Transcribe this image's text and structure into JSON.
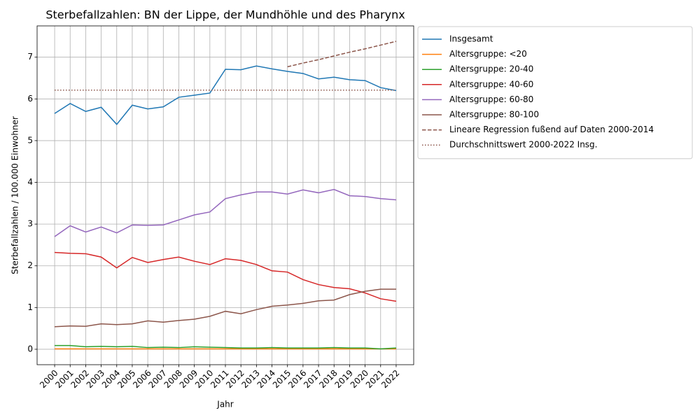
{
  "chart_data": {
    "type": "line",
    "title": "Sterbefallzahlen: BN der Lippe, der Mundhöhle und des Pharynx",
    "x_label": "Jahr",
    "y_label": "Sterbefallzahlen / 100.000 Einwohner",
    "x": [
      2000,
      2001,
      2002,
      2003,
      2004,
      2005,
      2006,
      2007,
      2008,
      2009,
      2010,
      2011,
      2012,
      2013,
      2014,
      2015,
      2016,
      2017,
      2018,
      2019,
      2020,
      2021,
      2022
    ],
    "xlim": [
      1998.87,
      2023.13
    ],
    "xticks": [
      2000,
      2001,
      2002,
      2003,
      2004,
      2005,
      2006,
      2007,
      2008,
      2009,
      2010,
      2011,
      2012,
      2013,
      2014,
      2015,
      2016,
      2017,
      2018,
      2019,
      2020,
      2021,
      2022
    ],
    "ylim": [
      -0.37,
      7.75
    ],
    "yticks": [
      0,
      1,
      2,
      3,
      4,
      5,
      6,
      7
    ],
    "grid": true,
    "legend": "outside-upper-right",
    "series": [
      {
        "name": "Insgesamt",
        "color": "#1f77b4",
        "dash": "solid",
        "values": [
          5.65,
          5.89,
          5.7,
          5.8,
          5.39,
          5.85,
          5.76,
          5.81,
          6.04,
          6.09,
          6.14,
          6.71,
          6.7,
          6.79,
          6.72,
          6.66,
          6.61,
          6.48,
          6.52,
          6.46,
          6.44,
          6.27,
          6.2
        ]
      },
      {
        "name": "Altersgruppe: <20",
        "color": "#ff7f0e",
        "dash": "solid",
        "values": [
          0.01,
          0.01,
          0.01,
          0.01,
          0.01,
          0.01,
          0.01,
          0.01,
          0.01,
          0.01,
          0.01,
          0.01,
          0.01,
          0.01,
          0.01,
          0.01,
          0.01,
          0.01,
          0.01,
          0.01,
          0.01,
          0.01,
          0.01
        ]
      },
      {
        "name": "Altersgruppe: 20-40",
        "color": "#2ca02c",
        "dash": "solid",
        "values": [
          0.09,
          0.09,
          0.06,
          0.07,
          0.06,
          0.07,
          0.04,
          0.05,
          0.04,
          0.06,
          0.05,
          0.04,
          0.03,
          0.03,
          0.04,
          0.03,
          0.03,
          0.03,
          0.04,
          0.03,
          0.03,
          0.01,
          0.03
        ]
      },
      {
        "name": "Altersgruppe: 40-60",
        "color": "#d62728",
        "dash": "solid",
        "values": [
          2.32,
          2.3,
          2.29,
          2.21,
          1.95,
          2.2,
          2.08,
          2.15,
          2.21,
          2.11,
          2.03,
          2.17,
          2.13,
          2.03,
          1.88,
          1.85,
          1.67,
          1.55,
          1.48,
          1.45,
          1.35,
          1.21,
          1.15
        ]
      },
      {
        "name": "Altersgruppe: 60-80",
        "color": "#9467bd",
        "dash": "solid",
        "values": [
          2.7,
          2.96,
          2.81,
          2.93,
          2.79,
          2.98,
          2.97,
          2.98,
          3.1,
          3.22,
          3.29,
          3.61,
          3.7,
          3.77,
          3.77,
          3.72,
          3.82,
          3.75,
          3.83,
          3.68,
          3.66,
          3.61,
          3.58
        ]
      },
      {
        "name": "Altersgruppe: 80-100",
        "color": "#8c564b",
        "dash": "solid",
        "values": [
          0.54,
          0.56,
          0.55,
          0.61,
          0.59,
          0.61,
          0.68,
          0.65,
          0.69,
          0.72,
          0.79,
          0.91,
          0.85,
          0.95,
          1.03,
          1.06,
          1.1,
          1.16,
          1.18,
          1.31,
          1.39,
          1.44,
          1.44
        ]
      },
      {
        "name": "Lineare Regression fußend auf Daten 2000-2014",
        "color": "#8c564b",
        "dash": "dashed",
        "values": [
          null,
          null,
          null,
          null,
          null,
          null,
          null,
          null,
          null,
          null,
          null,
          null,
          null,
          null,
          null,
          6.77,
          6.86,
          6.94,
          7.03,
          7.12,
          7.2,
          7.29,
          7.38
        ]
      },
      {
        "name": "Durchschnittswert 2000-2022 Insg.",
        "color": "#8c564b",
        "dash": "dotted",
        "values": [
          6.21,
          6.21,
          6.21,
          6.21,
          6.21,
          6.21,
          6.21,
          6.21,
          6.21,
          6.21,
          6.21,
          6.21,
          6.21,
          6.21,
          6.21,
          6.21,
          6.21,
          6.21,
          6.21,
          6.21,
          6.21,
          6.21,
          6.21
        ]
      }
    ]
  }
}
